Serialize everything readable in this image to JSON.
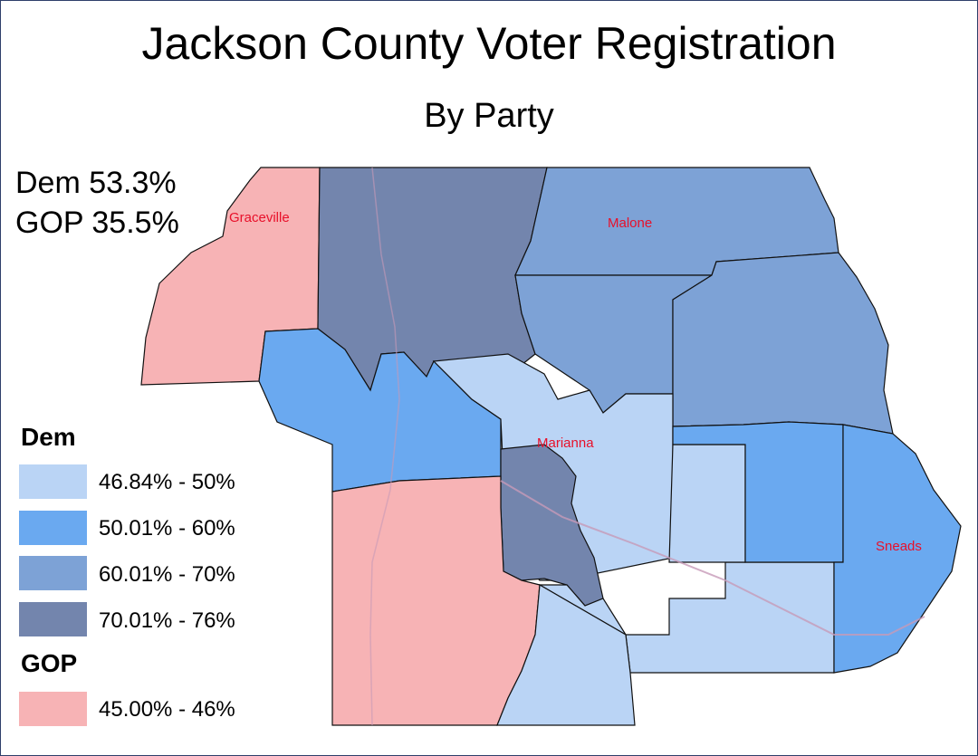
{
  "title": "Jackson County Voter Registration",
  "subtitle": "By Party",
  "totals": {
    "dem": "Dem 53.3%",
    "gop": "GOP 35.5%"
  },
  "towns": {
    "graceville": "Graceville",
    "malone": "Malone",
    "marianna": "Marianna",
    "sneads": "Sneads"
  },
  "legend": {
    "dem_heading": "Dem",
    "dem_ranges": [
      "46.84% - 50%",
      "50.01% - 60%",
      "60.01% - 70%",
      "70.01% - 76%"
    ],
    "gop_heading": "GOP",
    "gop_ranges": [
      "45.00% - 46%"
    ]
  },
  "colors": {
    "dem_1": "#bad4f5",
    "dem_2": "#6aa9f0",
    "dem_3": "#7da2d6",
    "dem_4": "#7385ad",
    "gop_1": "#f7b3b5",
    "border": "#111111"
  }
}
